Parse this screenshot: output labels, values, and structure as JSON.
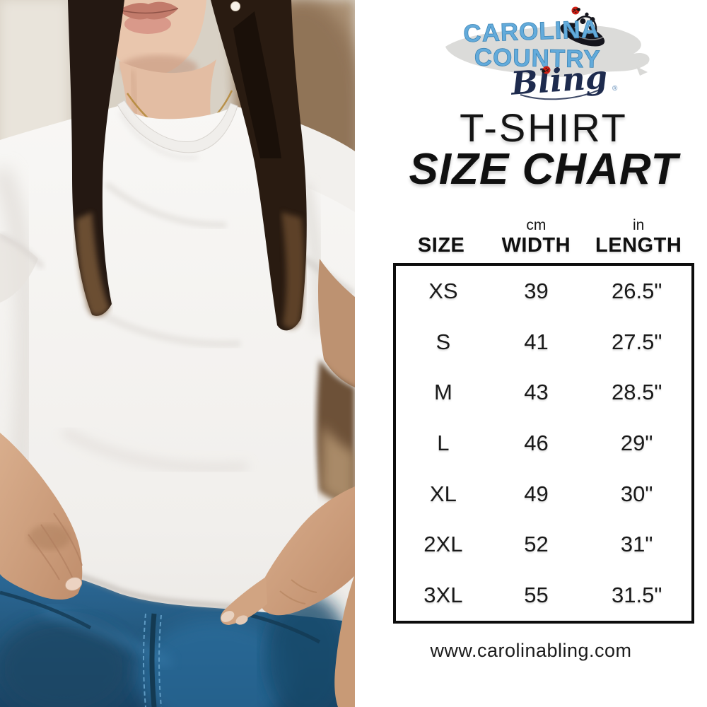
{
  "brand": {
    "name_line1": "CAROLINA",
    "name_line2": "COUNTRY",
    "name_line3": "Bling",
    "trademark": "®",
    "colors": {
      "letters_blue": "#63abdb",
      "script_navy": "#1e2b4e",
      "ladybug_red": "#cf1f14",
      "state_gray": "#d9d9d7"
    }
  },
  "title": {
    "line1": "T-SHIRT",
    "line2": "SIZE CHART"
  },
  "size_chart": {
    "columns": [
      {
        "unit": "",
        "label": "SIZE"
      },
      {
        "unit": "cm",
        "label": "WIDTH"
      },
      {
        "unit": "in",
        "label": "LENGTH"
      }
    ],
    "rows": [
      {
        "size": "XS",
        "width": "39",
        "length": "26.5\""
      },
      {
        "size": "S",
        "width": "41",
        "length": "27.5\""
      },
      {
        "size": "M",
        "width": "43",
        "length": "28.5\""
      },
      {
        "size": "L",
        "width": "46",
        "length": "29\""
      },
      {
        "size": "XL",
        "width": "49",
        "length": "30\""
      },
      {
        "size": "2XL",
        "width": "52",
        "length": "31\""
      },
      {
        "size": "3XL",
        "width": "55",
        "length": "31.5\""
      }
    ]
  },
  "footer": {
    "website": "www.carolinabling.com"
  },
  "chart_data": {
    "type": "table",
    "title": "T-SHIRT SIZE CHART",
    "columns": [
      "SIZE",
      "WIDTH (cm)",
      "LENGTH (in)"
    ],
    "rows": [
      [
        "XS",
        "39",
        "26.5\""
      ],
      [
        "S",
        "41",
        "27.5\""
      ],
      [
        "M",
        "43",
        "28.5\""
      ],
      [
        "L",
        "46",
        "29\""
      ],
      [
        "XL",
        "49",
        "30\""
      ],
      [
        "2XL",
        "52",
        "31\""
      ],
      [
        "3XL",
        "55",
        "31.5\""
      ]
    ]
  }
}
